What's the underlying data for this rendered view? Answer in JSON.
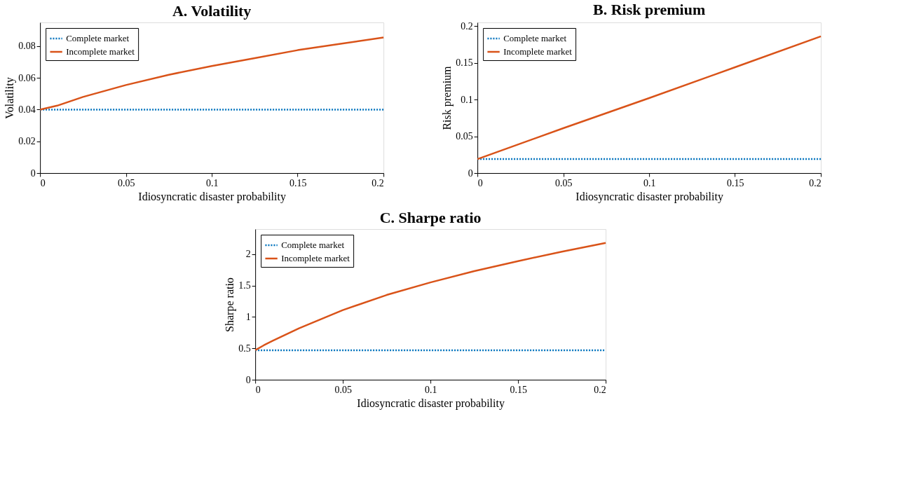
{
  "chart_data": [
    {
      "type": "line",
      "title": "A. Volatility",
      "xlabel": "Idiosyncratic disaster probability",
      "ylabel": "Volatility",
      "x": [
        0,
        0.01,
        0.025,
        0.05,
        0.075,
        0.1,
        0.125,
        0.15,
        0.175,
        0.2
      ],
      "xlim": [
        0,
        0.2
      ],
      "xticks": [
        0,
        0.05,
        0.1,
        0.15,
        0.2
      ],
      "ylim": [
        0,
        0.095
      ],
      "yticks": [
        0,
        0.02,
        0.04,
        0.06,
        0.08
      ],
      "grid": false,
      "legend": "top left",
      "series": [
        {
          "name": "Complete market",
          "color": "#0072bd",
          "line_style": "dotted",
          "values": [
            0.04,
            0.04,
            0.04,
            0.04,
            0.04,
            0.04,
            0.04,
            0.04,
            0.04,
            0.04
          ]
        },
        {
          "name": "Incomplete market",
          "color": "#d95319",
          "line_style": "solid",
          "values": [
            0.04,
            0.0425,
            0.048,
            0.0555,
            0.062,
            0.0675,
            0.0725,
            0.0775,
            0.0815,
            0.0855
          ]
        }
      ]
    },
    {
      "type": "line",
      "title": "B. Risk premium",
      "xlabel": "Idiosyncratic disaster probability",
      "ylabel": "Risk premium",
      "x": [
        0,
        0.05,
        0.1,
        0.15,
        0.2
      ],
      "xlim": [
        0,
        0.2
      ],
      "xticks": [
        0,
        0.05,
        0.1,
        0.15,
        0.2
      ],
      "ylim": [
        0,
        0.205
      ],
      "yticks": [
        0,
        0.05,
        0.1,
        0.15,
        0.2
      ],
      "grid": false,
      "legend": "top left",
      "series": [
        {
          "name": "Complete market",
          "color": "#0072bd",
          "line_style": "dotted",
          "values": [
            0.019,
            0.019,
            0.019,
            0.019,
            0.019
          ]
        },
        {
          "name": "Incomplete market",
          "color": "#d95319",
          "line_style": "solid",
          "values": [
            0.019,
            0.061,
            0.102,
            0.144,
            0.186
          ]
        }
      ]
    },
    {
      "type": "line",
      "title": "C. Sharpe ratio",
      "xlabel": "Idiosyncratic disaster probability",
      "ylabel": "Sharpe ratio",
      "x": [
        0,
        0.005,
        0.01,
        0.025,
        0.05,
        0.075,
        0.1,
        0.125,
        0.15,
        0.175,
        0.2
      ],
      "xlim": [
        0,
        0.2
      ],
      "xticks": [
        0,
        0.05,
        0.1,
        0.15,
        0.2
      ],
      "ylim": [
        0,
        2.4
      ],
      "yticks": [
        0,
        0.5,
        1,
        1.5,
        2
      ],
      "grid": false,
      "legend": "top left",
      "series": [
        {
          "name": "Complete market",
          "color": "#0072bd",
          "line_style": "dotted",
          "values": [
            0.47,
            0.47,
            0.47,
            0.47,
            0.47,
            0.47,
            0.47,
            0.47,
            0.47,
            0.47,
            0.47
          ]
        },
        {
          "name": "Incomplete market",
          "color": "#d95319",
          "line_style": "solid",
          "values": [
            0.47,
            0.55,
            0.62,
            0.82,
            1.11,
            1.35,
            1.55,
            1.73,
            1.89,
            2.04,
            2.18
          ]
        }
      ]
    }
  ]
}
